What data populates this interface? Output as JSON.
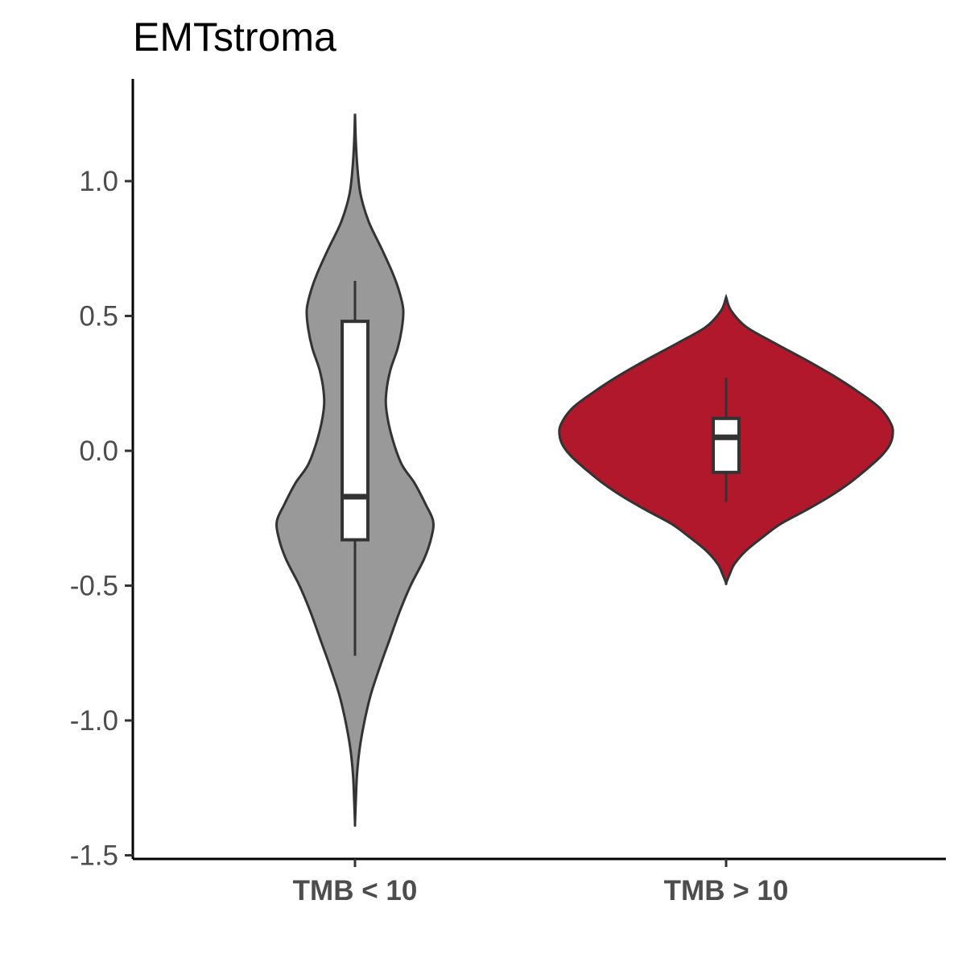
{
  "chart_data": {
    "type": "violin",
    "title": "EMTstroma",
    "xlabel": "",
    "ylabel": "",
    "ylim": [
      -1.52,
      1.38
    ],
    "yticks": [
      "1.0",
      "0.5",
      "0.0",
      "-0.5",
      "-1.0",
      "-1.5"
    ],
    "ytick_values": [
      1.0,
      0.5,
      0.0,
      -0.5,
      -1.0,
      -1.5
    ],
    "categories": [
      "TMB < 10",
      "TMB > 10"
    ],
    "grid": false,
    "legend": "none",
    "series": [
      {
        "category": "TMB < 10",
        "color": "#999999",
        "range": [
          -1.38,
          1.25
        ],
        "box": {
          "lower_whisker": -0.76,
          "q1": -0.33,
          "median": -0.17,
          "q3": 0.48,
          "upper_whisker": 0.63
        },
        "density_profile": [
          [
            1.25,
            0.0
          ],
          [
            1.15,
            0.01
          ],
          [
            1.05,
            0.03
          ],
          [
            0.95,
            0.07
          ],
          [
            0.85,
            0.17
          ],
          [
            0.75,
            0.33
          ],
          [
            0.65,
            0.48
          ],
          [
            0.58,
            0.56
          ],
          [
            0.52,
            0.6
          ],
          [
            0.45,
            0.58
          ],
          [
            0.38,
            0.53
          ],
          [
            0.3,
            0.44
          ],
          [
            0.22,
            0.39
          ],
          [
            0.15,
            0.39
          ],
          [
            0.05,
            0.46
          ],
          [
            -0.05,
            0.58
          ],
          [
            -0.12,
            0.74
          ],
          [
            -0.2,
            0.88
          ],
          [
            -0.26,
            0.97
          ],
          [
            -0.32,
            0.95
          ],
          [
            -0.4,
            0.86
          ],
          [
            -0.5,
            0.69
          ],
          [
            -0.6,
            0.55
          ],
          [
            -0.7,
            0.43
          ],
          [
            -0.8,
            0.31
          ],
          [
            -0.9,
            0.2
          ],
          [
            -1.0,
            0.12
          ],
          [
            -1.1,
            0.06
          ],
          [
            -1.2,
            0.025
          ],
          [
            -1.3,
            0.01
          ],
          [
            -1.38,
            0.0
          ]
        ]
      },
      {
        "category": "TMB > 10",
        "color": "#B2182B",
        "range": [
          -0.49,
          0.57
        ],
        "box": {
          "lower_whisker": -0.19,
          "q1": -0.08,
          "median": 0.05,
          "q3": 0.12,
          "upper_whisker": 0.27
        },
        "density_profile": [
          [
            0.57,
            0.0
          ],
          [
            0.52,
            0.03
          ],
          [
            0.46,
            0.12
          ],
          [
            0.4,
            0.29
          ],
          [
            0.34,
            0.47
          ],
          [
            0.28,
            0.64
          ],
          [
            0.22,
            0.79
          ],
          [
            0.16,
            0.92
          ],
          [
            0.1,
            0.99
          ],
          [
            0.06,
            1.0
          ],
          [
            0.02,
            0.98
          ],
          [
            -0.02,
            0.93
          ],
          [
            -0.07,
            0.84
          ],
          [
            -0.12,
            0.74
          ],
          [
            -0.17,
            0.62
          ],
          [
            -0.22,
            0.48
          ],
          [
            -0.27,
            0.33
          ],
          [
            -0.32,
            0.22
          ],
          [
            -0.37,
            0.12
          ],
          [
            -0.42,
            0.05
          ],
          [
            -0.46,
            0.02
          ],
          [
            -0.49,
            0.0
          ]
        ]
      }
    ]
  }
}
